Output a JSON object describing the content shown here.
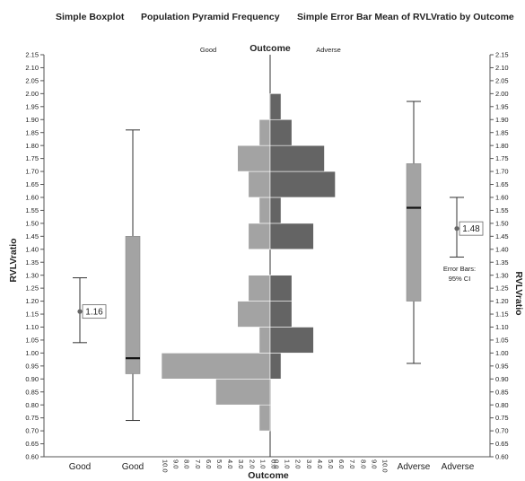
{
  "titles": {
    "boxplot": "Simple Boxplot",
    "pyramid": "Population Pyramid Frequency",
    "errorbar": "Simple Error Bar Mean of RVLVratio by Outcome"
  },
  "colors": {
    "good_bar": "#a3a3a3",
    "adverse_bar": "#646464",
    "box_fill": "#a3a3a3",
    "whisker": "#333333",
    "median": "#111111",
    "mean_marker": "#666666"
  },
  "chart_data": [
    {
      "type": "boxplot",
      "title": "Simple Boxplot",
      "ylabel": "RVLVratio",
      "ylim": [
        0.6,
        2.15
      ],
      "categories": [
        "Good",
        "Adverse"
      ],
      "boxes": [
        {
          "category": "Good",
          "min": 0.74,
          "q1": 0.92,
          "median": 0.98,
          "q3": 1.45,
          "max": 1.86
        },
        {
          "category": "Adverse",
          "min": 0.96,
          "q1": 1.2,
          "median": 1.56,
          "q3": 1.73,
          "max": 1.97
        }
      ]
    },
    {
      "type": "bar",
      "orientation": "population-pyramid",
      "title": "Population Pyramid Frequency",
      "xlabel": "Outcome",
      "ylim": [
        0.6,
        2.15
      ],
      "bin_width": 0.1,
      "x_ticks": [
        "10.0",
        "9.0",
        "8.0",
        "7.0",
        "6.0",
        "5.0",
        "4.0",
        "3.0",
        "2.0",
        "1.0",
        "0.0",
        "0.0",
        "1.0",
        "2.0",
        "3.0",
        "4.0",
        "5.0",
        "6.0",
        "7.0",
        "8.0",
        "9.0",
        "10.0"
      ],
      "series": [
        {
          "name": "Good",
          "bin_centers": [
            0.75,
            0.85,
            0.95,
            1.05,
            1.15,
            1.25,
            1.45,
            1.55,
            1.65,
            1.75,
            1.85
          ],
          "values": [
            1,
            5,
            10,
            1,
            3,
            2,
            2,
            1,
            2,
            3,
            1
          ]
        },
        {
          "name": "Adverse",
          "bin_centers": [
            0.95,
            1.05,
            1.15,
            1.25,
            1.45,
            1.55,
            1.65,
            1.75,
            1.85,
            1.95
          ],
          "values": [
            1,
            4,
            2,
            2,
            4,
            1,
            6,
            5,
            2,
            1
          ]
        }
      ]
    },
    {
      "type": "errorbar",
      "title": "Simple Error Bar Mean of RVLVratio by Outcome",
      "ylabel": "RVLVratio",
      "ylim": [
        0.6,
        2.15
      ],
      "categories": [
        "Good",
        "Adverse"
      ],
      "points": [
        {
          "category": "Good",
          "mean": 1.16,
          "ci_low": 1.04,
          "ci_high": 1.29,
          "label": "1.16"
        },
        {
          "category": "Adverse",
          "mean": 1.48,
          "ci_low": 1.37,
          "ci_high": 1.6,
          "label": "1.48"
        }
      ],
      "note": "Error Bars: 95% CI"
    }
  ],
  "axes": {
    "y_title": "RVLVratio",
    "y_ticks": [
      "0.60",
      "0.65",
      "0.70",
      "0.75",
      "0.80",
      "0.85",
      "0.90",
      "0.95",
      "1.00",
      "1.05",
      "1.10",
      "1.15",
      "1.20",
      "1.25",
      "1.30",
      "1.35",
      "1.40",
      "1.45",
      "1.50",
      "1.55",
      "1.60",
      "1.65",
      "1.70",
      "1.75",
      "1.80",
      "1.85",
      "1.90",
      "1.95",
      "2.00",
      "2.05",
      "2.10",
      "2.15"
    ],
    "x_title": "Outcome",
    "top_title": "Outcome",
    "top_good": "Good",
    "top_adverse": "Adverse",
    "bottom_categories": [
      "Good",
      "Good",
      "Adverse",
      "Adverse"
    ],
    "note_line1": "Error Bars:",
    "note_line2": "95% CI"
  }
}
